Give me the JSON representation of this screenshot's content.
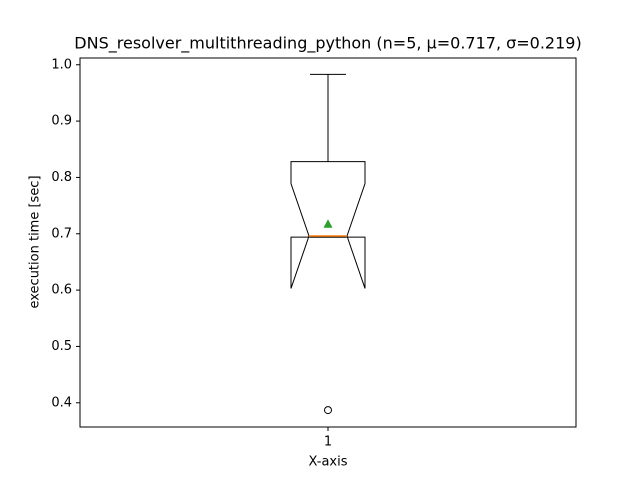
{
  "chart_data": {
    "type": "box",
    "title": "DNS_resolver_multithreading_python (n=5, μ=0.717, σ=0.219)",
    "xlabel": "X-axis",
    "ylabel": "execution time [sec]",
    "categories": [
      "1"
    ],
    "boxes": [
      {
        "whislo": 0.694,
        "q1": 0.694,
        "med": 0.696,
        "q3": 0.828,
        "whishi": 0.983,
        "notch_lo": 0.603,
        "notch_hi": 0.789,
        "mean": 0.717,
        "fliers": [
          0.387
        ]
      }
    ],
    "box_color": "#000000",
    "median_color": "#ff7f0e",
    "mean_color": "#2ca02c",
    "ylim": [
      0.357,
      1.012
    ],
    "yticks": [
      0.4,
      0.5,
      0.6,
      0.7,
      0.8,
      0.9,
      {
        "value": 1.0,
        "label": "1.0"
      }
    ],
    "grid": false
  }
}
